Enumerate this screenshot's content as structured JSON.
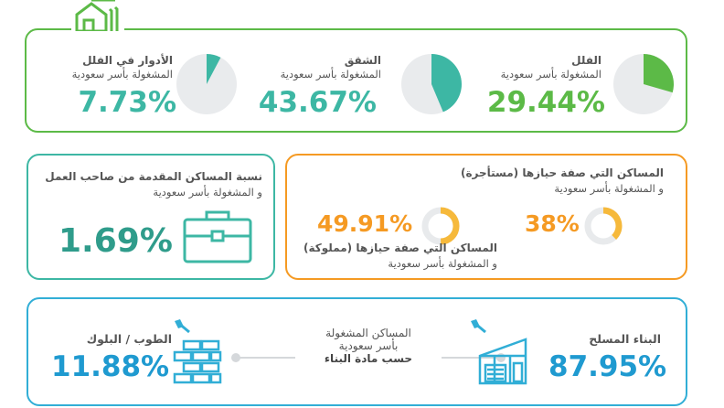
{
  "colors": {
    "green": "#5cba47",
    "teal": "#3db7a4",
    "orange": "#f59a23",
    "gold": "#f6b93b",
    "blue": "#31aed6",
    "navy": "#1f8fb8",
    "grey_ring": "#e8eaec",
    "text": "#555555"
  },
  "top_panel": {
    "icon": "house-icon",
    "items": [
      {
        "title": "الفلل",
        "subtitle": "المشغولة بأسر سعودية",
        "percent": "29.44%",
        "value": 29.44
      },
      {
        "title": "الشقق",
        "subtitle": "المشغولة بأسر سعودية",
        "percent": "43.67%",
        "value": 43.67
      },
      {
        "title": "الأدوار في الفلل",
        "subtitle": "المشغولة بأسر سعودية",
        "percent": "7.73%",
        "value": 7.73
      }
    ]
  },
  "employer_panel": {
    "title": "نسبة المساكن المقدمة من صاحب العمل",
    "subtitle": "و المشغولة بأسر سعودية",
    "percent": "1.69%",
    "icon": "briefcase-icon"
  },
  "tenure_panel": {
    "rented": {
      "title": "المساكن التي صفة حيازها (مستأجرة)",
      "subtitle": "و المشغولة بأسر سعودية",
      "percent": "38%",
      "value": 38
    },
    "owned": {
      "title": "المساكن التي صفة حيازها (مملوكة)",
      "subtitle": "و المشغولة بأسر سعودية",
      "percent": "49.91%",
      "value": 49.91
    }
  },
  "material_panel": {
    "center": {
      "line1": "المساكن المشغولة",
      "line2": "بأسر سعودية",
      "line3": "حسب مادة البناء"
    },
    "concrete": {
      "title": "البناء المسلح",
      "percent": "87.95%",
      "icon": "reinforced-building-icon"
    },
    "brick": {
      "title": "الطوب / البلوك",
      "percent": "11.88%",
      "icon": "brick-wall-icon"
    }
  }
}
